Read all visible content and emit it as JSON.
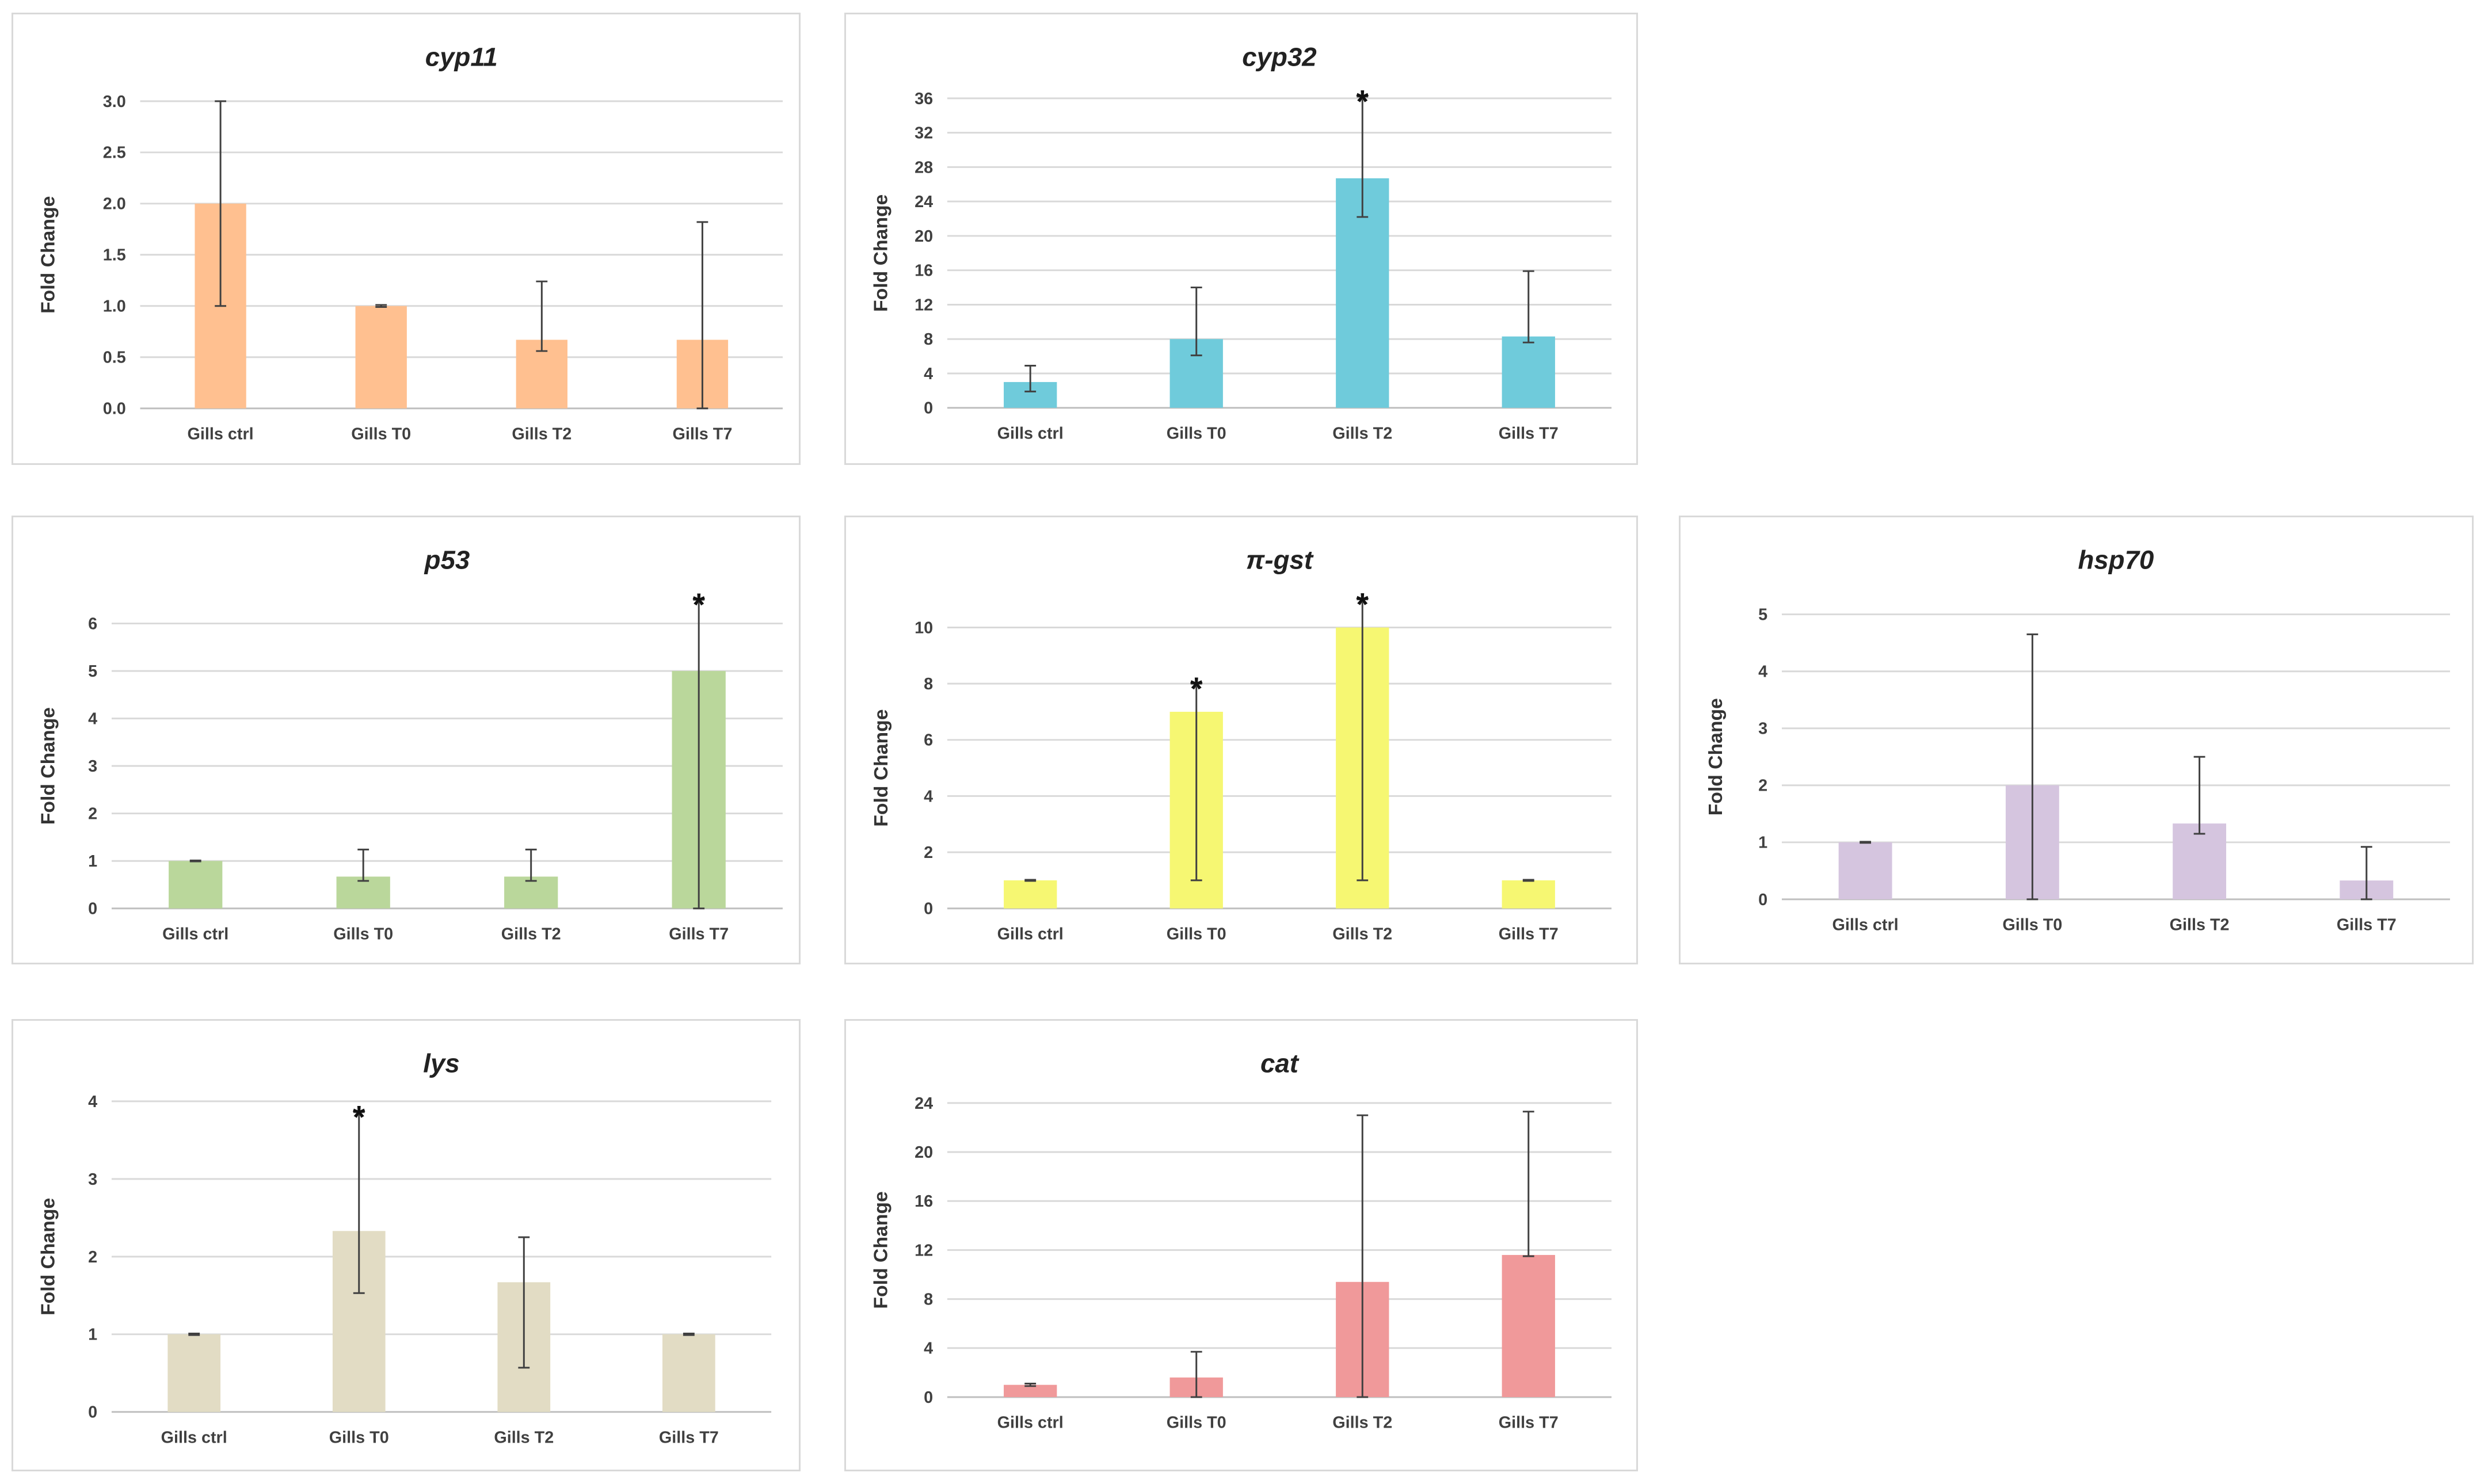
{
  "figure": {
    "errorbar_color": "#404040",
    "grid_color": "#d9d9d9",
    "axis_color": "#bfbfbf"
  },
  "chart_data": [
    {
      "type": "bar",
      "name": "cyp11",
      "title": "cyp11",
      "ylabel": "Fold Change",
      "xlabel": "",
      "categories": [
        "Gills ctrl",
        "Gills T0",
        "Gills T2",
        "Gills T7"
      ],
      "values": [
        2.0,
        1.0,
        0.67,
        0.67
      ],
      "error_low": [
        1.0,
        0.99,
        0.56,
        0.0
      ],
      "error_high": [
        3.0,
        1.01,
        1.24,
        1.82
      ],
      "significant": [
        false,
        false,
        false,
        false
      ],
      "ylim": [
        0,
        3.0
      ],
      "yticks": [
        "0.0",
        "0.5",
        "1.0",
        "1.5",
        "2.0",
        "2.5",
        "3.0"
      ],
      "color": "#FFC090",
      "grid": true
    },
    {
      "type": "bar",
      "name": "cyp32",
      "title": "cyp32",
      "ylabel": "Fold Change",
      "xlabel": "",
      "categories": [
        "Gills ctrl",
        "Gills T0",
        "Gills T2",
        "Gills T7"
      ],
      "values": [
        3.0,
        8.0,
        26.7,
        8.3
      ],
      "error_low": [
        1.9,
        6.1,
        22.2,
        7.6
      ],
      "error_high": [
        4.9,
        14.0,
        36.2,
        15.9
      ],
      "significant": [
        false,
        false,
        true,
        false
      ],
      "ylim": [
        0,
        36
      ],
      "yticks": [
        "0",
        "4",
        "8",
        "12",
        "16",
        "20",
        "24",
        "28",
        "32",
        "36"
      ],
      "color": "#6FCBDB",
      "grid": true
    },
    {
      "type": "bar",
      "name": "p53",
      "title": "p53",
      "ylabel": "Fold Change",
      "xlabel": "",
      "categories": [
        "Gills ctrl",
        "Gills T0",
        "Gills T2",
        "Gills T7"
      ],
      "values": [
        1.0,
        0.67,
        0.67,
        5.0
      ],
      "error_low": [
        0.99,
        0.58,
        0.58,
        0.0
      ],
      "error_high": [
        1.01,
        1.24,
        1.24,
        6.5
      ],
      "significant": [
        false,
        false,
        false,
        true
      ],
      "ylim": [
        0,
        6
      ],
      "yticks": [
        "0",
        "1",
        "2",
        "3",
        "4",
        "5",
        "6"
      ],
      "color": "#BAD79B",
      "grid": true
    },
    {
      "type": "bar",
      "name": "pi-gst",
      "title": "π-gst",
      "ylabel": "Fold Change",
      "xlabel": "",
      "categories": [
        "Gills ctrl",
        "Gills T0",
        "Gills T2",
        "Gills T7"
      ],
      "values": [
        1.0,
        7.0,
        10.0,
        1.0
      ],
      "error_low": [
        0.98,
        1.0,
        1.0,
        0.98
      ],
      "error_high": [
        1.02,
        8.0,
        11.0,
        1.02
      ],
      "significant": [
        false,
        true,
        true,
        false
      ],
      "ylim": [
        0,
        10
      ],
      "yticks": [
        "0",
        "2",
        "4",
        "6",
        "8",
        "10"
      ],
      "color": "#F6F772",
      "grid": true
    },
    {
      "type": "bar",
      "name": "hsp70",
      "title": "hsp70",
      "ylabel": "Fold Change",
      "xlabel": "",
      "categories": [
        "Gills ctrl",
        "Gills T0",
        "Gills T2",
        "Gills T7"
      ],
      "values": [
        1.0,
        2.0,
        1.33,
        0.33
      ],
      "error_low": [
        0.99,
        0.0,
        1.15,
        0.0
      ],
      "error_high": [
        1.01,
        4.65,
        2.5,
        0.92
      ],
      "significant": [
        false,
        false,
        false,
        false
      ],
      "ylim": [
        0,
        5
      ],
      "yticks": [
        "0",
        "1",
        "2",
        "3",
        "4",
        "5"
      ],
      "color": "#D5C5DF",
      "grid": true
    },
    {
      "type": "bar",
      "name": "lys",
      "title": "lys",
      "ylabel": "Fold Change",
      "xlabel": "",
      "categories": [
        "Gills ctrl",
        "Gills T0",
        "Gills T2",
        "Gills T7"
      ],
      "values": [
        1.0,
        2.33,
        1.67,
        1.0
      ],
      "error_low": [
        0.99,
        1.53,
        0.57,
        0.99
      ],
      "error_high": [
        1.01,
        3.86,
        2.25,
        1.01
      ],
      "significant": [
        false,
        true,
        false,
        false
      ],
      "ylim": [
        0,
        4
      ],
      "yticks": [
        "0",
        "1",
        "2",
        "3",
        "4"
      ],
      "color": "#E2DCC4",
      "grid": true
    },
    {
      "type": "bar",
      "name": "cat",
      "title": "cat",
      "ylabel": "Fold Change",
      "xlabel": "",
      "categories": [
        "Gills ctrl",
        "Gills T0",
        "Gills T2",
        "Gills T7"
      ],
      "values": [
        1.0,
        1.6,
        9.4,
        11.6
      ],
      "error_low": [
        0.9,
        0.0,
        0.0,
        11.5
      ],
      "error_high": [
        1.1,
        3.7,
        23.0,
        23.3
      ],
      "significant": [
        false,
        false,
        false,
        false
      ],
      "ylim": [
        0,
        24
      ],
      "yticks": [
        "0",
        "4",
        "8",
        "12",
        "16",
        "20",
        "24"
      ],
      "color": "#F0999A",
      "grid": true
    }
  ]
}
